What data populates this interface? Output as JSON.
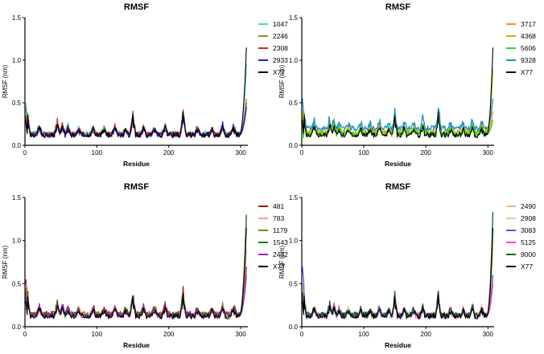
{
  "chart_data": [
    {
      "type": "line",
      "title": "RMSF",
      "xlabel": "Residue",
      "ylabel": "RMSF (nm)",
      "xlim": [
        0,
        310
      ],
      "ylim": [
        0,
        1.5
      ],
      "xticks": [
        "0",
        "100",
        "200",
        "300"
      ],
      "yticks": [
        "0.0",
        "0.5",
        "1.0",
        "1.5"
      ],
      "series": [
        {
          "name": "1047",
          "color": "#40e0b0",
          "base": 0.14,
          "end": 0.95,
          "start": 0.5,
          "seed": 1
        },
        {
          "name": "2246",
          "color": "#8b8b2a",
          "base": 0.13,
          "end": 0.55,
          "start": 0.45,
          "seed": 2
        },
        {
          "name": "2308",
          "color": "#e02020",
          "base": 0.13,
          "end": 0.5,
          "start": 0.35,
          "seed": 3
        },
        {
          "name": "2933",
          "color": "#2020c0",
          "base": 0.12,
          "end": 0.45,
          "start": 0.3,
          "seed": 4
        },
        {
          "name": "X77",
          "color": "#000000",
          "base": 0.12,
          "end": 1.15,
          "start": 0.3,
          "seed": 5
        }
      ]
    },
    {
      "type": "line",
      "title": "RMSF",
      "xlabel": "Residue",
      "ylabel": "RMSF (nm)",
      "xlim": [
        0,
        310
      ],
      "ylim": [
        0,
        1.5
      ],
      "xticks": [
        "0",
        "100",
        "200",
        "300"
      ],
      "yticks": [
        "0.0",
        "0.5",
        "1.0",
        "1.5"
      ],
      "series": [
        {
          "name": "3717",
          "color": "#ff8c1a",
          "base": 0.15,
          "end": 0.4,
          "start": 0.35,
          "seed": 6
        },
        {
          "name": "4368",
          "color": "#b8b800",
          "base": 0.15,
          "end": 0.9,
          "start": 0.4,
          "seed": 7
        },
        {
          "name": "5606",
          "color": "#22dd22",
          "base": 0.13,
          "end": 0.3,
          "start": 0.25,
          "seed": 8
        },
        {
          "name": "9328",
          "color": "#1e90c8",
          "base": 0.2,
          "end": 0.55,
          "start": 0.55,
          "seed": 9
        },
        {
          "name": "X77",
          "color": "#000000",
          "base": 0.12,
          "end": 1.15,
          "start": 0.3,
          "seed": 5
        }
      ]
    },
    {
      "type": "line",
      "title": "RMSF",
      "xlabel": "Residue",
      "ylabel": "RMSF (nm)",
      "xlim": [
        0,
        310
      ],
      "ylim": [
        0,
        1.5
      ],
      "xticks": [
        "0",
        "100",
        "200",
        "300"
      ],
      "yticks": [
        "0.0",
        "0.5",
        "1.0",
        "1.5"
      ],
      "series": [
        {
          "name": "481",
          "color": "#b01010",
          "base": 0.15,
          "end": 0.7,
          "start": 0.55,
          "seed": 10
        },
        {
          "name": "783",
          "color": "#f4a090",
          "base": 0.14,
          "end": 0.9,
          "start": 0.5,
          "seed": 11
        },
        {
          "name": "1179",
          "color": "#808000",
          "base": 0.14,
          "end": 1.3,
          "start": 0.45,
          "seed": 12
        },
        {
          "name": "1543",
          "color": "#1a7a1a",
          "base": 0.14,
          "end": 1.3,
          "start": 0.4,
          "seed": 13
        },
        {
          "name": "2432",
          "color": "#a020c0",
          "base": 0.13,
          "end": 0.6,
          "start": 0.35,
          "seed": 14
        },
        {
          "name": "X77",
          "color": "#000000",
          "base": 0.12,
          "end": 1.15,
          "start": 0.3,
          "seed": 5
        }
      ]
    },
    {
      "type": "line",
      "title": "RMSF",
      "xlabel": "Residue",
      "ylabel": "RMSF (nm)",
      "xlim": [
        0,
        310
      ],
      "ylim": [
        0,
        1.5
      ],
      "xticks": [
        "0",
        "100",
        "200",
        "300"
      ],
      "yticks": [
        "0.0",
        "0.5",
        "1.0",
        "1.5"
      ],
      "series": [
        {
          "name": "2490",
          "color": "#e8b888",
          "base": 0.14,
          "end": 0.9,
          "start": 0.5,
          "seed": 15
        },
        {
          "name": "2908",
          "color": "#e0d090",
          "base": 0.14,
          "end": 1.0,
          "start": 0.45,
          "seed": 16
        },
        {
          "name": "3083",
          "color": "#4a5ae8",
          "base": 0.13,
          "end": 0.6,
          "start": 0.7,
          "seed": 17
        },
        {
          "name": "5125",
          "color": "#ff40c0",
          "base": 0.13,
          "end": 0.5,
          "start": 0.35,
          "seed": 18
        },
        {
          "name": "9000",
          "color": "#106030",
          "base": 0.14,
          "end": 1.33,
          "start": 0.4,
          "seed": 19
        },
        {
          "name": "X77",
          "color": "#000000",
          "base": 0.12,
          "end": 1.15,
          "start": 0.3,
          "seed": 5
        }
      ]
    }
  ]
}
